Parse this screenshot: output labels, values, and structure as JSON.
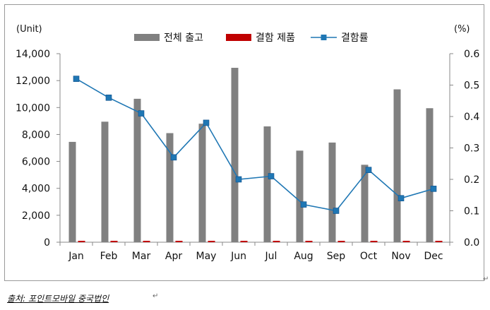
{
  "chart_data": {
    "type": "bar",
    "categories": [
      "Jan",
      "Feb",
      "Mar",
      "Apr",
      "May",
      "Jun",
      "Jul",
      "Aug",
      "Sep",
      "Oct",
      "Nov",
      "Dec"
    ],
    "series": [
      {
        "name": "전체 출고",
        "type": "bar",
        "axis": "left",
        "color": "#808080",
        "values": [
          7450,
          8950,
          10650,
          8100,
          8800,
          12950,
          8600,
          6800,
          7400,
          5750,
          11350,
          9950
        ]
      },
      {
        "name": "결함 제품",
        "type": "bar",
        "axis": "left",
        "color": "#c00000",
        "values": [
          40,
          40,
          40,
          40,
          40,
          40,
          40,
          40,
          40,
          40,
          40,
          40
        ]
      },
      {
        "name": "결함률",
        "type": "line",
        "axis": "right",
        "color": "#1f77b4",
        "marker_color": "#1f77b4",
        "values": [
          0.52,
          0.46,
          0.41,
          0.27,
          0.38,
          0.2,
          0.21,
          0.12,
          0.1,
          0.23,
          0.14,
          0.17
        ]
      }
    ],
    "y_left": {
      "unit_label": "(Unit)",
      "lim": [
        0,
        14000
      ],
      "ticks": [
        "0",
        "2,000",
        "4,000",
        "6,000",
        "8,000",
        "10,000",
        "12,000",
        "14,000"
      ]
    },
    "y_right": {
      "unit_label": "(%)",
      "lim": [
        0,
        0.6
      ],
      "ticks": [
        "0.0",
        "0.1",
        "0.2",
        "0.3",
        "0.4",
        "0.5",
        "0.6"
      ]
    },
    "legend_position": "top-center",
    "grid": false
  },
  "source_note": "출처: 포인트모바일 중국법인",
  "return_mark": "↵"
}
